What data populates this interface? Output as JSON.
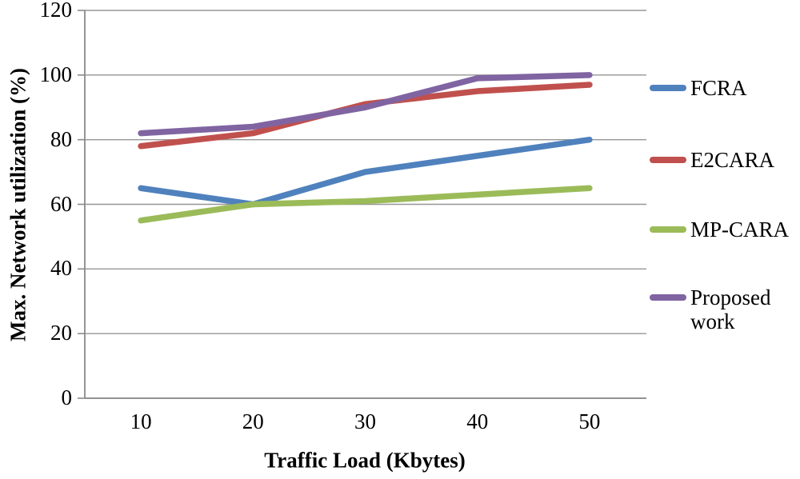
{
  "chart_data": {
    "type": "line",
    "title": "",
    "x": [
      10,
      20,
      30,
      40,
      50
    ],
    "xlabel": "Traffic Load (Kbytes)",
    "ylabel": "Max. Network utilization (%)",
    "ylim": [
      0,
      120
    ],
    "yticks": [
      0,
      20,
      40,
      60,
      80,
      100,
      120
    ],
    "grid": true,
    "legend_position": "right",
    "series": [
      {
        "name": "FCRA",
        "color": "#4F81BD",
        "values": [
          65,
          60,
          70,
          75,
          80
        ]
      },
      {
        "name": "E2CARA",
        "color": "#C0504D",
        "values": [
          78,
          82,
          91,
          95,
          97
        ]
      },
      {
        "name": "MP-CARA",
        "color": "#9BBB59",
        "values": [
          55,
          60,
          61,
          63,
          65
        ]
      },
      {
        "name": "Proposed work",
        "color": "#8064A2",
        "values": [
          82,
          84,
          90,
          99,
          100
        ]
      }
    ]
  },
  "colors": {
    "gridline": "#969696",
    "axis": "#8a8a8a",
    "text": "#000000",
    "background": "#ffffff"
  }
}
